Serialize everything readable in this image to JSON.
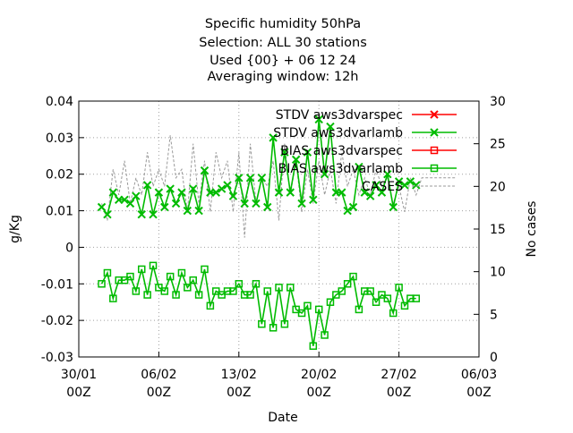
{
  "chart_data": {
    "type": "line",
    "title_lines": [
      "Specific humidity 50hPa",
      "Selection: ALL     30 stations",
      "Used {00} + 06 12 24",
      "Averaging window: 12h"
    ],
    "xlabel": "Date",
    "ylabel": "g/Kg",
    "y2label": "No cases",
    "x_range": [
      "2022-01-30T00:00",
      "2022-03-06T00:00"
    ],
    "ylim": [
      -0.03,
      0.04
    ],
    "y2lim": [
      0,
      30
    ],
    "x_ticks": [
      {
        "date": "2022-01-30T00:00",
        "line1": "30/01",
        "line2": "00Z"
      },
      {
        "date": "2022-02-06T00:00",
        "line1": "06/02",
        "line2": "00Z"
      },
      {
        "date": "2022-02-13T00:00",
        "line1": "13/02",
        "line2": "00Z"
      },
      {
        "date": "2022-02-20T00:00",
        "line1": "20/02",
        "line2": "00Z"
      },
      {
        "date": "2022-02-27T00:00",
        "line1": "27/02",
        "line2": "00Z"
      },
      {
        "date": "2022-03-06T00:00",
        "line1": "06/03",
        "line2": "00Z"
      }
    ],
    "y_ticks": [
      -0.03,
      -0.02,
      -0.01,
      0,
      0.01,
      0.02,
      0.03,
      0.04
    ],
    "y_tick_labels": [
      "-0.03",
      "-0.02",
      "-0.01",
      "0",
      "0.01",
      "0.02",
      "0.03",
      "0.04"
    ],
    "y2_ticks": [
      0,
      5,
      10,
      15,
      20,
      25,
      30
    ],
    "y2_tick_labels": [
      "0",
      "5",
      "10",
      "15",
      "20",
      "25",
      "30"
    ],
    "grid": true,
    "legend_position": "top-right",
    "series": [
      {
        "name": "STDV aws3dvarspec",
        "stat": "STDV",
        "color": "#ff0000",
        "marker": "x",
        "axis": "y",
        "x": [],
        "values": []
      },
      {
        "name": "STDV aws3dvarlamb",
        "stat": "STDV",
        "color": "#00bb00",
        "marker": "x",
        "axis": "y",
        "x": [
          "2022-02-01T00:00",
          "2022-02-01T12:00",
          "2022-02-02T00:00",
          "2022-02-02T12:00",
          "2022-02-03T00:00",
          "2022-02-03T12:00",
          "2022-02-04T00:00",
          "2022-02-04T12:00",
          "2022-02-05T00:00",
          "2022-02-05T12:00",
          "2022-02-06T00:00",
          "2022-02-06T12:00",
          "2022-02-07T00:00",
          "2022-02-07T12:00",
          "2022-02-08T00:00",
          "2022-02-08T12:00",
          "2022-02-09T00:00",
          "2022-02-09T12:00",
          "2022-02-10T00:00",
          "2022-02-10T12:00",
          "2022-02-11T00:00",
          "2022-02-11T12:00",
          "2022-02-12T00:00",
          "2022-02-12T12:00",
          "2022-02-13T00:00",
          "2022-02-13T12:00",
          "2022-02-14T00:00",
          "2022-02-14T12:00",
          "2022-02-15T00:00",
          "2022-02-15T12:00",
          "2022-02-16T00:00",
          "2022-02-16T12:00",
          "2022-02-17T00:00",
          "2022-02-17T12:00",
          "2022-02-18T00:00",
          "2022-02-18T12:00",
          "2022-02-19T00:00",
          "2022-02-19T12:00",
          "2022-02-20T00:00",
          "2022-02-20T12:00",
          "2022-02-21T00:00",
          "2022-02-21T12:00",
          "2022-02-22T00:00",
          "2022-02-22T12:00",
          "2022-02-23T00:00",
          "2022-02-23T12:00",
          "2022-02-24T00:00",
          "2022-02-24T12:00",
          "2022-02-25T00:00",
          "2022-02-25T12:00",
          "2022-02-26T00:00",
          "2022-02-26T12:00",
          "2022-02-27T00:00",
          "2022-02-27T12:00",
          "2022-02-28T00:00",
          "2022-02-28T12:00"
        ],
        "values": [
          0.011,
          0.009,
          0.015,
          0.013,
          0.013,
          0.012,
          0.014,
          0.009,
          0.017,
          0.009,
          0.015,
          0.011,
          0.016,
          0.012,
          0.015,
          0.01,
          0.016,
          0.01,
          0.021,
          0.015,
          0.015,
          0.016,
          0.017,
          0.014,
          0.019,
          0.012,
          0.019,
          0.012,
          0.019,
          0.011,
          0.03,
          0.015,
          0.026,
          0.015,
          0.024,
          0.012,
          0.026,
          0.013,
          0.035,
          0.02,
          0.033,
          0.015,
          0.015,
          0.01,
          0.011,
          0.022,
          0.015,
          0.014,
          0.017,
          0.015,
          0.02,
          0.011,
          0.018,
          0.017,
          0.018,
          0.017
        ]
      },
      {
        "name": "BIAS aws3dvarspec",
        "stat": "BIAS",
        "color": "#ff0000",
        "marker": "square",
        "axis": "y",
        "x": [],
        "values": []
      },
      {
        "name": "BIAS aws3dvarlamb",
        "stat": "BIAS",
        "color": "#00bb00",
        "marker": "square",
        "axis": "y",
        "x": [
          "2022-02-01T00:00",
          "2022-02-01T12:00",
          "2022-02-02T00:00",
          "2022-02-02T12:00",
          "2022-02-03T00:00",
          "2022-02-03T12:00",
          "2022-02-04T00:00",
          "2022-02-04T12:00",
          "2022-02-05T00:00",
          "2022-02-05T12:00",
          "2022-02-06T00:00",
          "2022-02-06T12:00",
          "2022-02-07T00:00",
          "2022-02-07T12:00",
          "2022-02-08T00:00",
          "2022-02-08T12:00",
          "2022-02-09T00:00",
          "2022-02-09T12:00",
          "2022-02-10T00:00",
          "2022-02-10T12:00",
          "2022-02-11T00:00",
          "2022-02-11T12:00",
          "2022-02-12T00:00",
          "2022-02-12T12:00",
          "2022-02-13T00:00",
          "2022-02-13T12:00",
          "2022-02-14T00:00",
          "2022-02-14T12:00",
          "2022-02-15T00:00",
          "2022-02-15T12:00",
          "2022-02-16T00:00",
          "2022-02-16T12:00",
          "2022-02-17T00:00",
          "2022-02-17T12:00",
          "2022-02-18T00:00",
          "2022-02-18T12:00",
          "2022-02-19T00:00",
          "2022-02-19T12:00",
          "2022-02-20T00:00",
          "2022-02-20T12:00",
          "2022-02-21T00:00",
          "2022-02-21T12:00",
          "2022-02-22T00:00",
          "2022-02-22T12:00",
          "2022-02-23T00:00",
          "2022-02-23T12:00",
          "2022-02-24T00:00",
          "2022-02-24T12:00",
          "2022-02-25T00:00",
          "2022-02-25T12:00",
          "2022-02-26T00:00",
          "2022-02-26T12:00",
          "2022-02-27T00:00",
          "2022-02-27T12:00",
          "2022-02-28T00:00",
          "2022-02-28T12:00"
        ],
        "values": [
          -0.01,
          -0.007,
          -0.014,
          -0.009,
          -0.009,
          -0.008,
          -0.012,
          -0.006,
          -0.013,
          -0.005,
          -0.011,
          -0.012,
          -0.008,
          -0.013,
          -0.007,
          -0.011,
          -0.009,
          -0.013,
          -0.006,
          -0.016,
          -0.012,
          -0.013,
          -0.012,
          -0.012,
          -0.01,
          -0.013,
          -0.013,
          -0.01,
          -0.021,
          -0.012,
          -0.022,
          -0.011,
          -0.021,
          -0.011,
          -0.017,
          -0.018,
          -0.016,
          -0.027,
          -0.017,
          -0.024,
          -0.015,
          -0.013,
          -0.012,
          -0.01,
          -0.008,
          -0.017,
          -0.012,
          -0.012,
          -0.015,
          -0.013,
          -0.014,
          -0.018,
          -0.011,
          -0.016,
          -0.014,
          -0.014
        ]
      },
      {
        "name": "CASES",
        "stat": "CASES",
        "color": "#999999",
        "marker": "none",
        "axis": "y2",
        "dashed": true,
        "x": [
          "2022-02-01T00:00",
          "2022-02-01T12:00",
          "2022-02-02T00:00",
          "2022-02-02T12:00",
          "2022-02-03T00:00",
          "2022-02-03T12:00",
          "2022-02-04T00:00",
          "2022-02-04T12:00",
          "2022-02-05T00:00",
          "2022-02-05T12:00",
          "2022-02-06T00:00",
          "2022-02-06T12:00",
          "2022-02-07T00:00",
          "2022-02-07T12:00",
          "2022-02-08T00:00",
          "2022-02-08T12:00",
          "2022-02-09T00:00",
          "2022-02-09T12:00",
          "2022-02-10T00:00",
          "2022-02-10T12:00",
          "2022-02-11T00:00",
          "2022-02-11T12:00",
          "2022-02-12T00:00",
          "2022-02-12T12:00",
          "2022-02-13T00:00",
          "2022-02-13T12:00",
          "2022-02-14T00:00",
          "2022-02-14T12:00",
          "2022-02-15T00:00",
          "2022-02-15T12:00",
          "2022-02-16T00:00",
          "2022-02-16T12:00",
          "2022-02-17T00:00",
          "2022-02-17T12:00",
          "2022-02-18T00:00",
          "2022-02-18T12:00",
          "2022-02-19T00:00",
          "2022-02-19T12:00",
          "2022-02-20T00:00",
          "2022-02-20T12:00",
          "2022-02-21T00:00",
          "2022-02-21T12:00",
          "2022-02-22T00:00",
          "2022-02-22T12:00",
          "2022-02-23T00:00",
          "2022-02-23T12:00",
          "2022-02-24T00:00",
          "2022-02-24T12:00",
          "2022-02-25T00:00",
          "2022-02-25T12:00",
          "2022-02-26T00:00",
          "2022-02-26T12:00",
          "2022-02-27T00:00",
          "2022-02-27T12:00",
          "2022-02-28T00:00",
          "2022-02-28T12:00",
          "2022-03-01T00:00",
          "2022-03-01T12:00",
          "2022-03-02T00:00",
          "2022-03-02T12:00",
          "2022-03-03T00:00",
          "2022-03-03T12:00",
          "2022-03-04T00:00"
        ],
        "values": [
          18,
          16,
          22,
          19,
          23,
          18,
          21,
          19,
          24,
          20,
          22,
          20,
          26,
          21,
          22,
          17,
          25,
          18,
          23,
          17,
          24,
          21,
          23,
          17,
          24,
          14,
          25,
          18,
          21,
          20,
          23,
          16,
          25,
          19,
          23,
          17,
          22,
          18,
          23,
          19,
          22,
          18,
          24,
          20,
          22,
          19,
          21,
          19,
          22,
          20,
          21,
          18,
          20,
          17,
          21,
          19,
          21,
          21,
          21,
          21,
          21,
          21,
          21
        ]
      }
    ]
  }
}
